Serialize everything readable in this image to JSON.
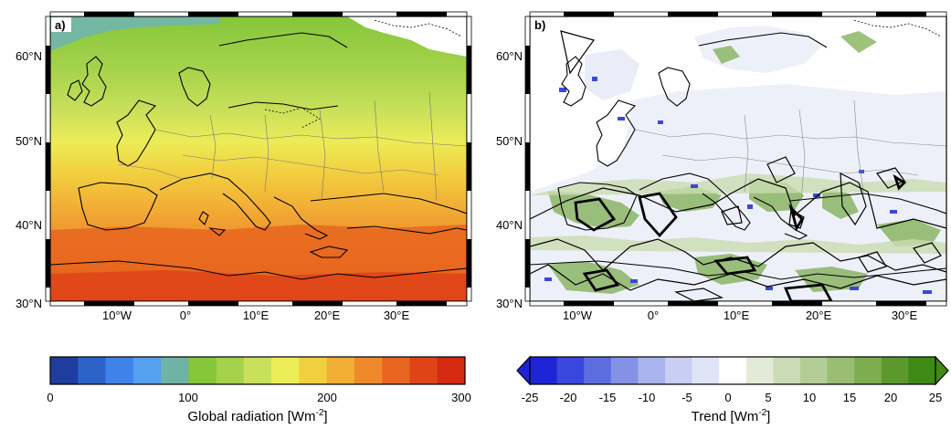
{
  "colors": {
    "sequential": [
      "#1f3d9e",
      "#2d63c9",
      "#3f82e8",
      "#55a0ef",
      "#6fb3a6",
      "#86c63a",
      "#a4d24b",
      "#c9e05a",
      "#ecec57",
      "#f2cf3f",
      "#f2ae35",
      "#ee8a2b",
      "#e8661f",
      "#df4418",
      "#d32a10"
    ],
    "diverging": [
      "#1e24d6",
      "#3a47dc",
      "#5d6de0",
      "#8492e6",
      "#a9b3ec",
      "#c9cff3",
      "#e0e4f7",
      "#ffffff",
      "#e3ead8",
      "#cbdbb8",
      "#b3cd96",
      "#98bd73",
      "#7dad50",
      "#5c992d",
      "#3f8a14"
    ]
  },
  "panels": [
    {
      "label": "a)",
      "lat_ticks": [
        "60°N",
        "50°N",
        "40°N",
        "30°N"
      ],
      "lon_ticks": [
        "10°W",
        "0°",
        "10°E",
        "20°E",
        "30°E"
      ],
      "colorbar": {
        "title": "Global radiation [Wm",
        "title_sup": "-2",
        "title_end": "]",
        "ticks": [
          "0",
          "100",
          "200",
          "300"
        ],
        "extend": "none"
      }
    },
    {
      "label": "b)",
      "lat_ticks": [
        "60°N",
        "50°N",
        "40°N",
        "30°N"
      ],
      "lon_ticks": [
        "10°W",
        "0°",
        "10°E",
        "20°E",
        "30°E"
      ],
      "colorbar": {
        "title": "Trend [Wm",
        "title_sup": "-2",
        "title_end": "]",
        "ticks": [
          "-25",
          "-20",
          "-15",
          "-10",
          "-5",
          "0",
          "5",
          "10",
          "15",
          "20",
          "25"
        ],
        "extend": "both"
      }
    }
  ]
}
